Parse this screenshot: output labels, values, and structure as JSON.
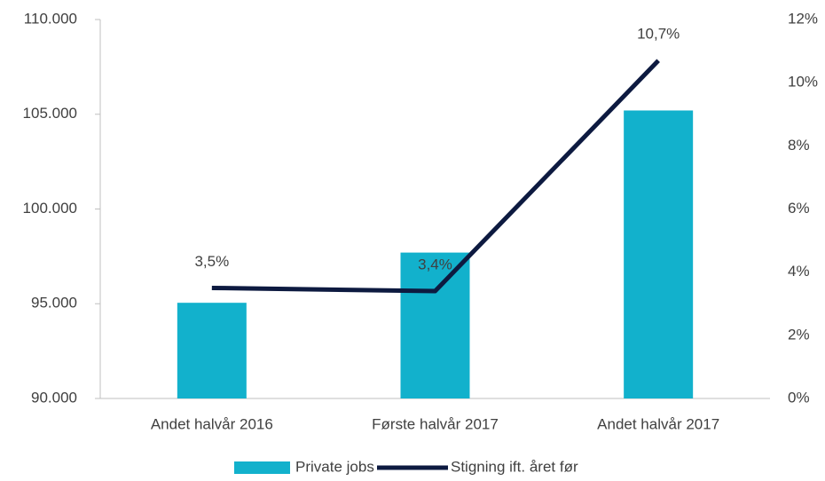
{
  "chart_data": {
    "type": "bar_line",
    "categories": [
      "Andet halvår 2016",
      "Første halvår 2017",
      "Andet halvår 2017"
    ],
    "series": [
      {
        "name": "Private jobs",
        "type": "bar",
        "color": "#12b1cc",
        "values": [
          95050,
          97700,
          105200
        ]
      },
      {
        "name": "Stigning ift. året før",
        "type": "line",
        "axis": "y2",
        "color": "#0d1a40",
        "values": [
          3.5,
          3.4,
          10.7
        ],
        "value_labels": [
          "3,5%",
          "3,4%",
          "10,7%"
        ]
      }
    ],
    "ylim": [
      90000,
      110000
    ],
    "yticks": [
      {
        "value": 90000,
        "label": "90.000"
      },
      {
        "value": 95000,
        "label": "95.000"
      },
      {
        "value": 100000,
        "label": "100.000"
      },
      {
        "value": 105000,
        "label": "105.000"
      },
      {
        "value": 110000,
        "label": "110.000"
      }
    ],
    "y2lim": [
      0,
      12
    ],
    "y2ticks": [
      {
        "value": 0,
        "label": "0%"
      },
      {
        "value": 2,
        "label": "2%"
      },
      {
        "value": 4,
        "label": "4%"
      },
      {
        "value": 6,
        "label": "6%"
      },
      {
        "value": 8,
        "label": "8%"
      },
      {
        "value": 10,
        "label": "10%"
      },
      {
        "value": 12,
        "label": "12%"
      }
    ],
    "legend": "bottom"
  }
}
